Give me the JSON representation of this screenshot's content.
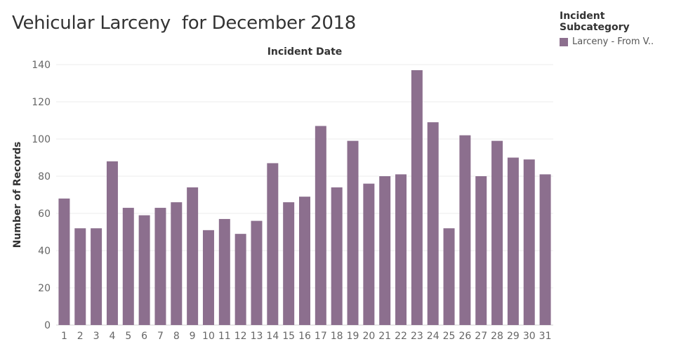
{
  "title": "Vehicular Larceny  for December 2018",
  "legend": {
    "title": "Incident Subcategory",
    "items": [
      {
        "label": "Larceny - From V..",
        "color": "#8c6f8e"
      }
    ]
  },
  "chart_data": {
    "type": "bar",
    "title": "Vehicular Larceny  for December 2018",
    "xlabel": "Incident Date",
    "ylabel": "Number of Records",
    "categories": [
      "1",
      "2",
      "3",
      "4",
      "5",
      "6",
      "7",
      "8",
      "9",
      "10",
      "11",
      "12",
      "13",
      "14",
      "15",
      "16",
      "17",
      "18",
      "19",
      "20",
      "21",
      "22",
      "23",
      "24",
      "25",
      "26",
      "27",
      "28",
      "29",
      "30",
      "31"
    ],
    "series": [
      {
        "name": "Larceny - From V..",
        "values": [
          68,
          52,
          52,
          88,
          63,
          59,
          63,
          66,
          74,
          51,
          57,
          49,
          56,
          87,
          66,
          69,
          107,
          74,
          99,
          76,
          80,
          81,
          137,
          109,
          52,
          102,
          80,
          99,
          90,
          89,
          81
        ]
      }
    ],
    "ylim": [
      0,
      140
    ],
    "yticks": [
      0,
      20,
      40,
      60,
      80,
      100,
      120,
      140
    ],
    "grid": true,
    "legend_position": "top-right",
    "bar_color": "#8c6f8e"
  }
}
